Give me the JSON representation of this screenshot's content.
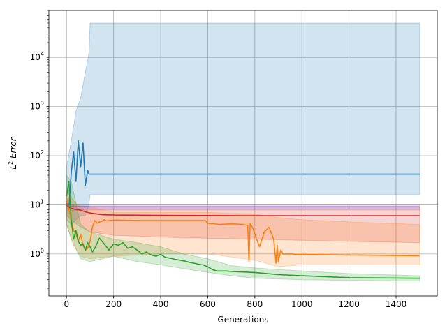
{
  "chart_data": {
    "type": "line",
    "xlabel": "Generations",
    "ylabel_main": "L",
    "ylabel_sup": "2",
    "ylabel_rest": " Error",
    "yscale": "log",
    "xlim": [
      -75,
      1575
    ],
    "ylim": [
      0.14,
      90000
    ],
    "x_ticks": [
      0,
      200,
      400,
      600,
      800,
      1000,
      1200,
      1400
    ],
    "x_tick_labels": [
      "0",
      "200",
      "400",
      "600",
      "800",
      "1000",
      "1200",
      "1400"
    ],
    "y_ticks": [
      1,
      10,
      100,
      1000,
      10000
    ],
    "y_tick_labels": [
      {
        "base": "10",
        "exp": "0"
      },
      {
        "base": "10",
        "exp": "1"
      },
      {
        "base": "10",
        "exp": "2"
      },
      {
        "base": "10",
        "exp": "3"
      },
      {
        "base": "10",
        "exp": "4"
      }
    ],
    "grid": true,
    "legend": "none",
    "series": [
      {
        "color": "#1f77b4",
        "x": [
          0,
          10,
          20,
          30,
          40,
          50,
          60,
          70,
          80,
          90,
          95,
          100,
          200,
          600,
          1000,
          1500
        ],
        "y": [
          12,
          8,
          45,
          120,
          30,
          200,
          60,
          180,
          25,
          50,
          42,
          42,
          42,
          42,
          42,
          42
        ],
        "band_x": [
          0,
          20,
          40,
          60,
          80,
          95,
          100,
          1500
        ],
        "band_lo": [
          5,
          4,
          5,
          6,
          6,
          10,
          16,
          16
        ],
        "band_hi": [
          60,
          200,
          800,
          1500,
          5000,
          12000,
          50000,
          50000
        ]
      },
      {
        "color": "#9467bd",
        "x": [
          0,
          20,
          50,
          100,
          1500
        ],
        "y": [
          9.5,
          9.3,
          9.2,
          9.1,
          9.1
        ],
        "band_x": [
          0,
          1500
        ],
        "band_lo": [
          7.8,
          7.8
        ],
        "band_hi": [
          10,
          10
        ]
      },
      {
        "color": "#d62728",
        "x": [
          0,
          20,
          40,
          60,
          80,
          100,
          150,
          200,
          400,
          800,
          1200,
          1500
        ],
        "y": [
          9.8,
          8.5,
          8.0,
          7.8,
          7.2,
          6.8,
          6.3,
          6.2,
          6.1,
          6.0,
          6.0,
          6.0
        ],
        "band_x": [
          0,
          50,
          100,
          200,
          400,
          800,
          1200,
          1500
        ],
        "band_lo": [
          6,
          3.8,
          2.8,
          2.4,
          2.2,
          2.0,
          1.8,
          1.7
        ],
        "band_hi": [
          10,
          9.5,
          9.3,
          9.2,
          9.2,
          9.2,
          9.2,
          9.2
        ]
      },
      {
        "color": "#ff7f0e",
        "x": [
          0,
          10,
          20,
          30,
          40,
          50,
          60,
          70,
          80,
          90,
          100,
          110,
          120,
          130,
          140,
          150,
          160,
          170,
          180,
          200,
          300,
          400,
          500,
          590,
          600,
          650,
          700,
          750,
          770,
          775,
          780,
          790,
          800,
          820,
          840,
          860,
          880,
          890,
          895,
          900,
          910,
          920,
          950,
          1000,
          1200,
          1500
        ],
        "y": [
          14,
          8,
          5,
          3,
          2.5,
          1.8,
          2.5,
          1.5,
          1.2,
          1.3,
          1.8,
          3.5,
          4.8,
          4.2,
          4.5,
          4.6,
          5.0,
          4.7,
          4.8,
          4.9,
          4.8,
          4.8,
          4.8,
          4.8,
          4.2,
          4.0,
          4.1,
          4.0,
          3.8,
          0.7,
          4.1,
          3.5,
          2.5,
          1.4,
          2.8,
          3.5,
          2.0,
          0.65,
          1.5,
          0.7,
          1.2,
          1.0,
          1.0,
          0.98,
          0.95,
          0.92
        ],
        "band_x": [
          0,
          30,
          60,
          100,
          150,
          200,
          400,
          600,
          800,
          900,
          1000,
          1200,
          1500
        ],
        "band_lo": [
          4,
          1.5,
          0.9,
          0.8,
          0.85,
          0.9,
          1.0,
          1.0,
          0.75,
          0.55,
          0.6,
          0.6,
          0.6
        ],
        "band_hi": [
          20,
          12,
          9,
          9,
          8,
          7,
          7,
          7,
          6.5,
          5.5,
          5.0,
          4.5,
          4.0
        ]
      },
      {
        "color": "#2ca02c",
        "x": [
          0,
          10,
          20,
          30,
          40,
          50,
          60,
          70,
          80,
          90,
          100,
          110,
          120,
          140,
          160,
          180,
          200,
          220,
          240,
          260,
          280,
          300,
          320,
          340,
          360,
          380,
          400,
          420,
          440,
          460,
          480,
          500,
          520,
          540,
          560,
          580,
          600,
          620,
          640,
          680,
          700,
          750,
          800,
          850,
          900,
          1000,
          1200,
          1500
        ],
        "y": [
          15,
          30,
          5,
          2,
          3,
          1.8,
          1.5,
          1.6,
          1.2,
          1.7,
          1.4,
          1.1,
          1.3,
          2.1,
          1.6,
          1.2,
          1.6,
          1.5,
          1.7,
          1.3,
          1.4,
          1.2,
          1.0,
          1.1,
          0.95,
          0.9,
          0.98,
          0.85,
          0.82,
          0.78,
          0.75,
          0.72,
          0.68,
          0.65,
          0.62,
          0.6,
          0.55,
          0.48,
          0.45,
          0.45,
          0.44,
          0.43,
          0.42,
          0.4,
          0.38,
          0.36,
          0.33,
          0.32
        ],
        "band_x": [
          0,
          20,
          60,
          100,
          200,
          300,
          400,
          500,
          600,
          700,
          800,
          1000,
          1200,
          1500
        ],
        "band_lo": [
          4,
          2,
          0.8,
          0.7,
          0.9,
          0.7,
          0.6,
          0.5,
          0.42,
          0.36,
          0.32,
          0.3,
          0.29,
          0.28
        ],
        "band_hi": [
          40,
          30,
          4,
          2.8,
          2.0,
          1.7,
          1.4,
          1.0,
          0.8,
          0.58,
          0.52,
          0.45,
          0.4,
          0.36
        ]
      }
    ]
  }
}
